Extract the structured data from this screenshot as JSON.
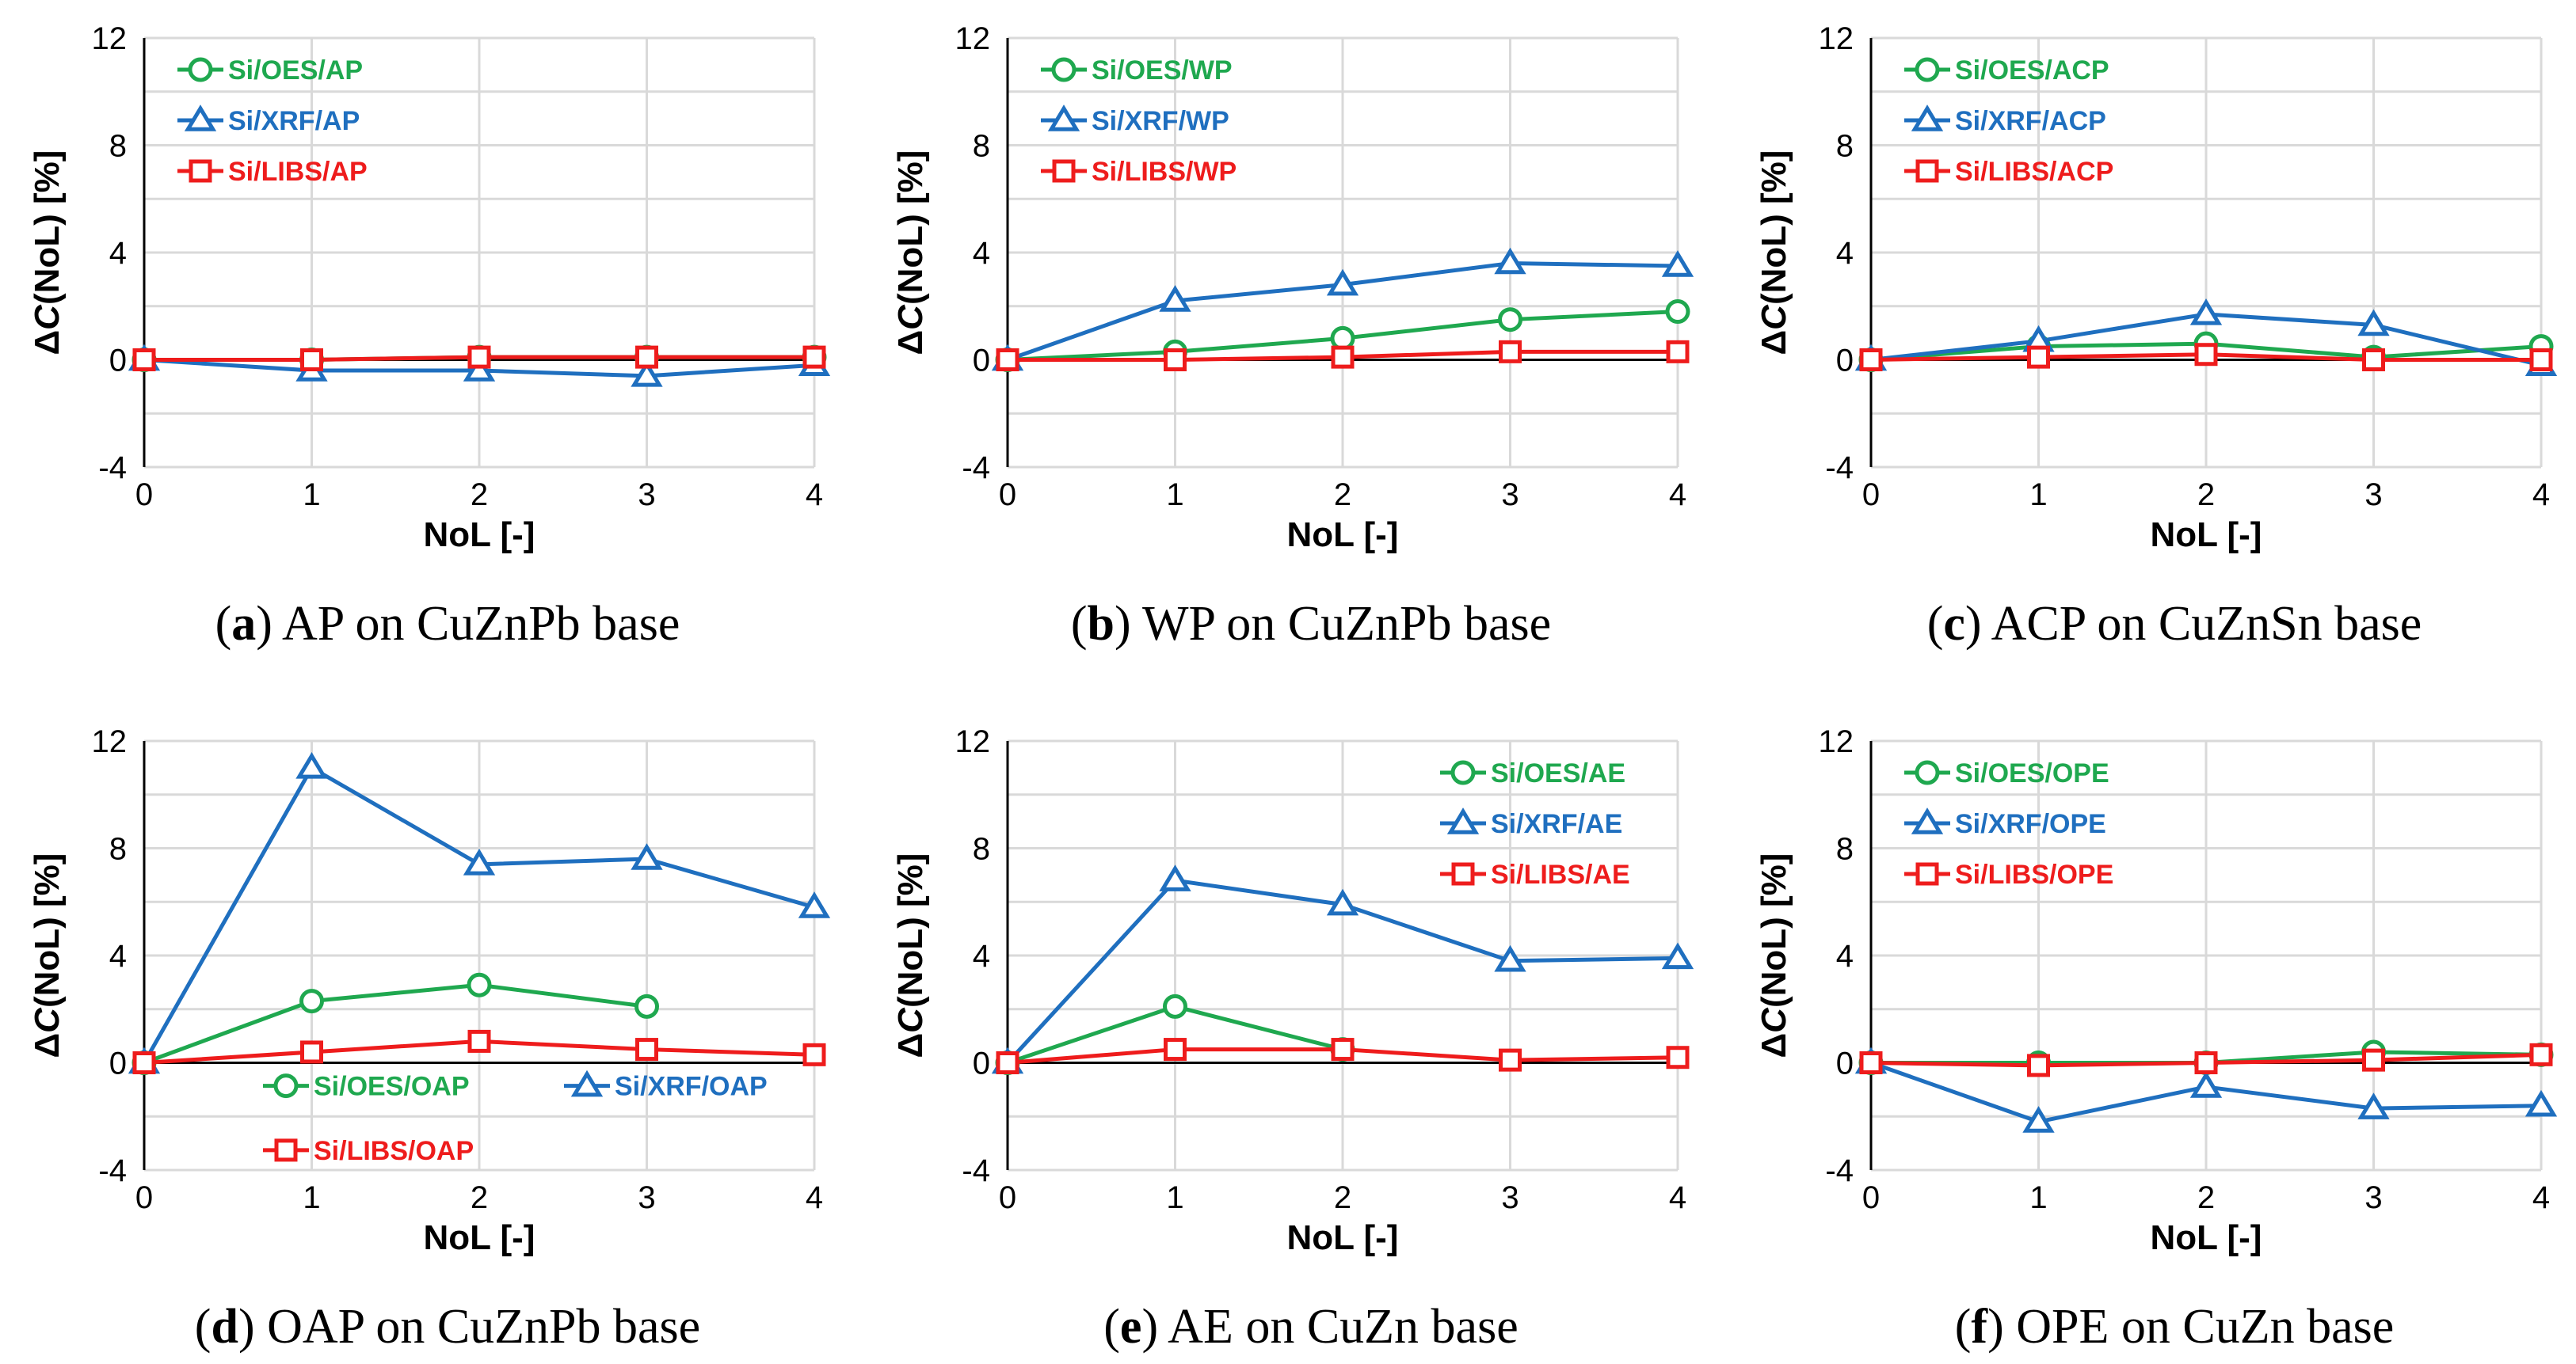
{
  "colors": {
    "OES": "#1fa84f",
    "XRF": "#1f6fbf",
    "LIBS": "#ee1c1c",
    "grid": "#d9d9d9",
    "axis": "#000000"
  },
  "axes_common": {
    "xlabel": "NoL [-]",
    "ylabel_prefix": "Δ",
    "ylabel_var": "C",
    "ylabel_rest": "(NoL) [%]",
    "x_ticks": [
      "0",
      "1",
      "2",
      "3",
      "4"
    ],
    "y_ticks": [
      "-4",
      "0",
      "4",
      "8",
      "12"
    ],
    "ylim": [
      -4,
      12
    ],
    "xlim": [
      0,
      4
    ]
  },
  "chart_data": [
    {
      "type": "line",
      "letter": "a",
      "caption_text": "AP on CuZnPb base",
      "x": [
        0,
        1,
        2,
        3,
        4
      ],
      "legend_position": "top-left",
      "series": [
        {
          "name": "Si/OES/AP",
          "method": "OES",
          "marker": "circle",
          "values": [
            0,
            0.0,
            0.1,
            0.1,
            0.1
          ]
        },
        {
          "name": "Si/XRF/AP",
          "method": "XRF",
          "marker": "triangle",
          "values": [
            0,
            -0.4,
            -0.4,
            -0.6,
            -0.2
          ]
        },
        {
          "name": "Si/LIBS/AP",
          "method": "LIBS",
          "marker": "square",
          "values": [
            0,
            0.0,
            0.1,
            0.1,
            0.1
          ]
        }
      ]
    },
    {
      "type": "line",
      "letter": "b",
      "caption_text": "WP on CuZnPb base",
      "x": [
        0,
        1,
        2,
        3,
        4
      ],
      "legend_position": "top-left",
      "series": [
        {
          "name": "Si/OES/WP",
          "method": "OES",
          "marker": "circle",
          "values": [
            0,
            0.3,
            0.8,
            1.5,
            1.8
          ]
        },
        {
          "name": "Si/XRF/WP",
          "method": "XRF",
          "marker": "triangle",
          "values": [
            0,
            2.2,
            2.8,
            3.6,
            3.5
          ]
        },
        {
          "name": "Si/LIBS/WP",
          "method": "LIBS",
          "marker": "square",
          "values": [
            0,
            0.0,
            0.1,
            0.3,
            0.3
          ]
        }
      ]
    },
    {
      "type": "line",
      "letter": "c",
      "caption_text": "ACP on CuZnSn base",
      "x": [
        0,
        1,
        2,
        3,
        4
      ],
      "legend_position": "top-left",
      "series": [
        {
          "name": "Si/OES/ACP",
          "method": "OES",
          "marker": "circle",
          "values": [
            0,
            0.5,
            0.6,
            0.1,
            0.5
          ]
        },
        {
          "name": "Si/XRF/ACP",
          "method": "XRF",
          "marker": "triangle",
          "values": [
            0,
            0.7,
            1.7,
            1.3,
            -0.2
          ]
        },
        {
          "name": "Si/LIBS/ACP",
          "method": "LIBS",
          "marker": "square",
          "values": [
            0,
            0.1,
            0.2,
            0.0,
            0.0
          ]
        }
      ]
    },
    {
      "type": "line",
      "letter": "d",
      "caption_text": "OAP on CuZnPb base",
      "x": [
        0,
        1,
        2,
        3,
        4
      ],
      "legend_position": "bottom",
      "series": [
        {
          "name": "Si/OES/OAP",
          "method": "OES",
          "marker": "circle",
          "values": [
            0,
            2.3,
            2.9,
            2.1,
            null
          ]
        },
        {
          "name": "Si/XRF/OAP",
          "method": "XRF",
          "marker": "triangle",
          "values": [
            0,
            11.0,
            7.4,
            7.6,
            5.8
          ]
        },
        {
          "name": "Si/LIBS/OAP",
          "method": "LIBS",
          "marker": "square",
          "values": [
            0,
            0.4,
            0.8,
            0.5,
            0.3
          ]
        }
      ]
    },
    {
      "type": "line",
      "letter": "e",
      "caption_text": "AE on CuZn base",
      "x": [
        0,
        1,
        2,
        3,
        4
      ],
      "legend_position": "top-right",
      "series": [
        {
          "name": "Si/OES/AE",
          "method": "OES",
          "marker": "circle",
          "values": [
            0,
            2.1,
            0.5,
            null,
            null
          ]
        },
        {
          "name": "Si/XRF/AE",
          "method": "XRF",
          "marker": "triangle",
          "values": [
            0,
            6.8,
            5.9,
            3.8,
            3.9
          ]
        },
        {
          "name": "Si/LIBS/AE",
          "method": "LIBS",
          "marker": "square",
          "values": [
            0,
            0.5,
            0.5,
            0.1,
            0.2
          ]
        }
      ]
    },
    {
      "type": "line",
      "letter": "f",
      "caption_text": "OPE on CuZn base",
      "x": [
        0,
        1,
        2,
        3,
        4
      ],
      "legend_position": "top-left",
      "series": [
        {
          "name": "Si/OES/OPE",
          "method": "OES",
          "marker": "circle",
          "values": [
            0,
            0.0,
            0.0,
            0.4,
            0.3
          ]
        },
        {
          "name": "Si/XRF/OPE",
          "method": "XRF",
          "marker": "triangle",
          "values": [
            0,
            -2.2,
            -0.9,
            -1.7,
            -1.6
          ]
        },
        {
          "name": "Si/LIBS/OPE",
          "method": "LIBS",
          "marker": "square",
          "values": [
            0,
            -0.1,
            0.0,
            0.1,
            0.3
          ]
        }
      ]
    }
  ]
}
